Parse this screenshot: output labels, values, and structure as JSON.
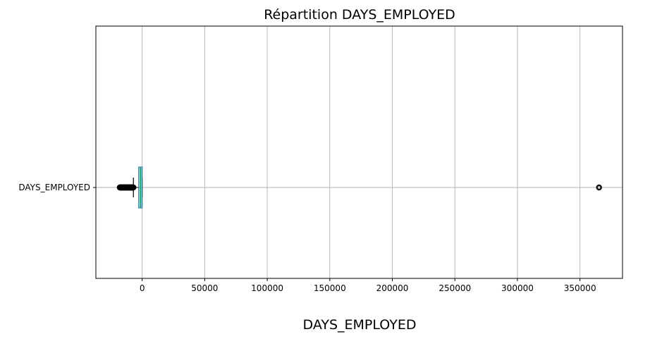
{
  "chart_data": {
    "type": "boxplot",
    "orientation": "horizontal",
    "title": "Répartition DAYS_EMPLOYED",
    "xlabel": "DAYS_EMPLOYED",
    "ylabel": "",
    "xlim": [
      -37000,
      384000
    ],
    "xticks": [
      0,
      50000,
      100000,
      150000,
      200000,
      250000,
      300000,
      350000
    ],
    "grid": true,
    "legend": "none",
    "series": [
      {
        "category": "DAYS_EMPLOYED",
        "q1": -2760,
        "median": -1213,
        "q3": 0,
        "whisker_low": -7000,
        "whisker_high": 0,
        "outliers_low_range": [
          -17900,
          -7000
        ],
        "outliers_high": [
          365243
        ]
      }
    ],
    "colors": {
      "box": "#1f77b4",
      "median": "#2ca02c",
      "whisker": "#000000",
      "outlier": "#000000",
      "grid": "#b0b0b0"
    }
  }
}
